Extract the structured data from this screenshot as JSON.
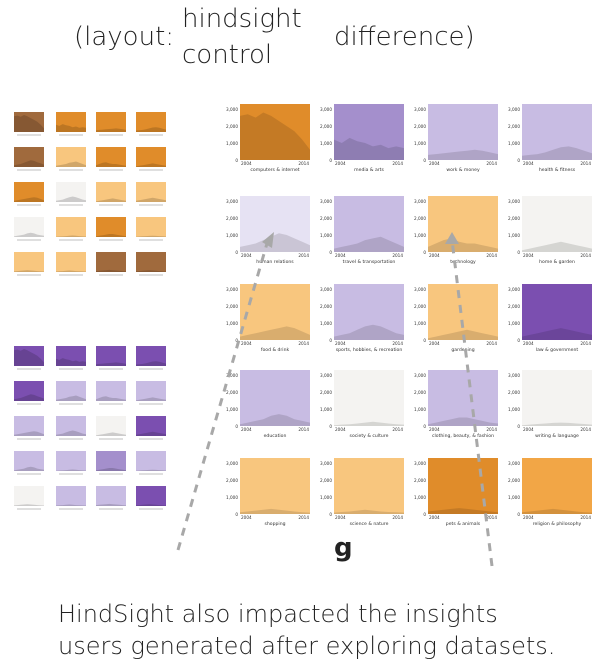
{
  "header": {
    "paren_open": "(layout:",
    "hindsight_line1": "hindsight",
    "hindsight_line2": "control",
    "difference": "difference)"
  },
  "figure_label": "g",
  "caption": {
    "line1": "HindSight also impacted the insights",
    "line2": "users generated after exploring datasets."
  },
  "colors": {
    "orange_dark": "#e08c2a",
    "orange_mid": "#f2a646",
    "orange_light": "#f8c67e",
    "orange_pale": "#fbdcae",
    "purple_dark": "#7b4fb0",
    "purple_mid": "#a48fcc",
    "purple_light": "#c8bce3",
    "purple_pale": "#e6e2f3",
    "neutral": "#f4f3f1",
    "brown": "#a06a3d"
  },
  "chart_data": {
    "type": "area",
    "x_range": [
      2004,
      2014
    ],
    "x_ticks": [
      "2004",
      "2014"
    ],
    "y_ticks": [
      "0",
      "1,000",
      "2,000",
      "3,000"
    ],
    "ylim": [
      0,
      3300
    ],
    "panels": [
      {
        "label": "computers & internet",
        "fill": "orange_dark",
        "values": [
          2600,
          2700,
          2500,
          2800,
          2600,
          2300,
          2000,
          1700,
          1200,
          600
        ]
      },
      {
        "label": "media & arts",
        "fill": "purple_mid",
        "values": [
          1200,
          1000,
          1300,
          1100,
          1000,
          800,
          900,
          700,
          800,
          700
        ]
      },
      {
        "label": "work & money",
        "fill": "purple_light",
        "values": [
          300,
          350,
          400,
          450,
          500,
          550,
          600,
          550,
          450,
          350
        ]
      },
      {
        "label": "health & fitness",
        "fill": "purple_light",
        "values": [
          250,
          300,
          350,
          450,
          600,
          750,
          800,
          700,
          550,
          400
        ]
      },
      {
        "label": "human relations",
        "fill": "purple_pale",
        "values": [
          300,
          400,
          500,
          700,
          900,
          1100,
          1000,
          800,
          600,
          400
        ]
      },
      {
        "label": "travel & transportation",
        "fill": "purple_light",
        "values": [
          200,
          300,
          400,
          500,
          700,
          800,
          900,
          700,
          500,
          300
        ]
      },
      {
        "label": "technology",
        "fill": "orange_light",
        "values": [
          300,
          500,
          700,
          800,
          600,
          500,
          500,
          400,
          300,
          200
        ]
      },
      {
        "label": "home & garden",
        "fill": "neutral",
        "values": [
          100,
          200,
          300,
          400,
          500,
          600,
          500,
          400,
          300,
          200
        ]
      },
      {
        "label": "food & drink",
        "fill": "orange_light",
        "values": [
          200,
          300,
          400,
          500,
          600,
          700,
          800,
          700,
          500,
          300
        ]
      },
      {
        "label": "sports, hobbies, & recreation",
        "fill": "purple_light",
        "values": [
          200,
          300,
          400,
          600,
          800,
          900,
          800,
          600,
          400,
          300
        ]
      },
      {
        "label": "gardening",
        "fill": "orange_light",
        "values": [
          100,
          200,
          300,
          400,
          500,
          600,
          500,
          400,
          300,
          200
        ]
      },
      {
        "label": "law & government",
        "fill": "purple_dark",
        "values": [
          200,
          300,
          400,
          500,
          600,
          700,
          600,
          500,
          400,
          300
        ]
      },
      {
        "label": "education",
        "fill": "purple_light",
        "values": [
          100,
          200,
          300,
          400,
          600,
          700,
          600,
          400,
          300,
          200
        ]
      },
      {
        "label": "society & culture",
        "fill": "neutral",
        "values": [
          50,
          80,
          100,
          150,
          200,
          250,
          200,
          150,
          100,
          80
        ]
      },
      {
        "label": "clothing, beauty, & fashion",
        "fill": "purple_light",
        "values": [
          100,
          200,
          300,
          400,
          500,
          500,
          400,
          300,
          200,
          150
        ]
      },
      {
        "label": "writing & language",
        "fill": "neutral",
        "values": [
          50,
          80,
          120,
          150,
          180,
          200,
          180,
          150,
          120,
          80
        ]
      },
      {
        "label": "shopping",
        "fill": "orange_light",
        "values": [
          100,
          150,
          200,
          250,
          300,
          250,
          200,
          150,
          100,
          80
        ]
      },
      {
        "label": "science & nature",
        "fill": "orange_light",
        "values": [
          80,
          120,
          150,
          200,
          250,
          200,
          150,
          120,
          100,
          80
        ]
      },
      {
        "label": "pets & animals",
        "fill": "orange_dark",
        "values": [
          150,
          200,
          250,
          300,
          350,
          300,
          250,
          200,
          150,
          100
        ]
      },
      {
        "label": "religion & philosophy",
        "fill": "orange_mid",
        "values": [
          100,
          150,
          200,
          250,
          300,
          250,
          200,
          150,
          100,
          80
        ]
      }
    ],
    "mini_hindsight_fills": [
      "brown",
      "orange_dark",
      "orange_dark",
      "orange_dark",
      "brown",
      "orange_light",
      "orange_dark",
      "orange_dark",
      "orange_dark",
      "neutral",
      "orange_light",
      "orange_light",
      "neutral",
      "orange_light",
      "orange_dark",
      "orange_light",
      "orange_light",
      "orange_light",
      "brown",
      "brown"
    ],
    "mini_control_fills": [
      "purple_dark",
      "purple_dark",
      "purple_dark",
      "purple_dark",
      "purple_dark",
      "purple_light",
      "purple_light",
      "purple_light",
      "purple_light",
      "purple_light",
      "neutral",
      "purple_dark",
      "purple_light",
      "purple_light",
      "purple_mid",
      "purple_light",
      "neutral",
      "purple_light",
      "purple_light",
      "purple_dark"
    ]
  }
}
